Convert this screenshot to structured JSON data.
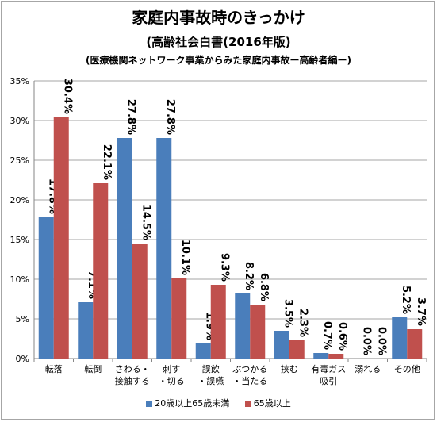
{
  "title": "家庭内事故時のきっかけ",
  "subtitle": "(高齢社会白書(2016年版)",
  "subtitle2": "(医療機関ネットワーク事業からみた家庭内事故ー高齢者編ー)",
  "colors": {
    "series1": "#4a7ebb",
    "series2": "#c0504d"
  },
  "chart_data": {
    "type": "bar",
    "categories": [
      [
        "転落"
      ],
      [
        "転倒"
      ],
      [
        "さわる・",
        "接触する"
      ],
      [
        "刺す",
        "・切る"
      ],
      [
        "誤飲",
        "・誤嚥"
      ],
      [
        "ぶつかる",
        "・当たる"
      ],
      [
        "挟む"
      ],
      [
        "有毒ガス",
        "吸引"
      ],
      [
        "溺れる"
      ],
      [
        "その他"
      ]
    ],
    "series": [
      {
        "name": "20歳以上65歳未満",
        "values": [
          17.8,
          7.1,
          27.8,
          27.8,
          1.9,
          8.2,
          3.5,
          0.7,
          0.0,
          5.2
        ]
      },
      {
        "name": "65歳以上",
        "values": [
          30.4,
          22.1,
          14.5,
          10.1,
          9.3,
          6.8,
          2.3,
          0.6,
          0.0,
          3.7
        ]
      }
    ],
    "ylim": [
      0,
      35
    ],
    "yticks": [
      "0%",
      "5%",
      "10%",
      "15%",
      "20%",
      "25%",
      "30%",
      "35%"
    ],
    "data_labels": [
      [
        "17.8%",
        "7.1%",
        "27.8%",
        "27.8%",
        "1.9%",
        "8.2%",
        "3.5%",
        "0.7%",
        "0.0%",
        "5.2%"
      ],
      [
        "30.4%",
        "22.1%",
        "14.5%",
        "10.1%",
        "9.3%",
        "6.8%",
        "2.3%",
        "0.6%",
        "0.0%",
        "3.7%"
      ]
    ],
    "grid": true,
    "legend_position": "bottom"
  }
}
